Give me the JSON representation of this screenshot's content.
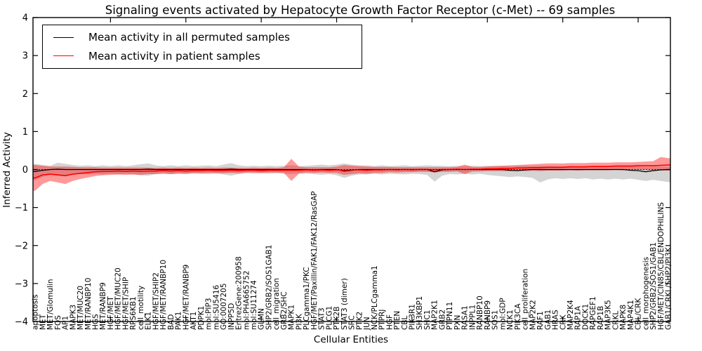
{
  "chart_data": {
    "type": "line",
    "title": "Signaling events activated by Hepatocyte Growth Factor Receptor (c-Met) -- 69 samples",
    "xlabel": "Cellular Entities",
    "ylabel": "Inferred Activity",
    "ylim": [
      -4,
      4
    ],
    "ytick_values": [
      4,
      3,
      2,
      1,
      0,
      -1,
      -2,
      -3,
      -4
    ],
    "ytick_labels": [
      "4",
      "3",
      "2",
      "1",
      "0",
      "−1",
      "−2",
      "−3",
      "−4"
    ],
    "grid": false,
    "legend_position": "upper left",
    "zero_reference_line": true,
    "colors": {
      "permuted_line": "#000000",
      "permuted_band": "#999999",
      "patient_line": "#ff0000",
      "patient_band": "#ff0000"
    },
    "categories": [
      "apoptosis",
      "MET",
      "MET/Glomulin",
      "FOS",
      "AP1",
      "MAPK3",
      "MET/MUC20",
      "MET/RANBP10",
      "HGS",
      "MET/RANBP9",
      "HGF/MET",
      "HGF/MET/MUC20",
      "HGF/MET/SHIP",
      "RPS6KB1",
      "cell_motility",
      "ELK1",
      "HGF/MET/SHIP2",
      "HGF/MET/RANBP10",
      "BAD",
      "PAK1",
      "HGF/MET/RANBP9",
      "AKT1",
      "PDPK1",
      "mol:PIP3",
      "mol:SU5416",
      "GO:0007205",
      "INPP5D",
      "EntrezGene:200958",
      "mol:PHA665752",
      "mol:SU11274",
      "GLMN",
      "SHP2/GRB2/SOS1GAB1",
      "cell_migration",
      "GRB2/SHC",
      "MAPK1",
      "PI3K",
      "PLCgamma1/PKC",
      "HGF/MET/Paxillin/FAK1/FAK12/RasGAP",
      "STAT3",
      "PLCG1",
      "PTK2B",
      "STAT3 (dimer)",
      "SRC",
      "PTK2",
      "JUN",
      "NCK/PLCgamma1",
      "PTPRJ",
      "HGF",
      "PTEN",
      "CBL",
      "PIK3R1",
      "SH3KBP1",
      "SHC1",
      "MAP2K1",
      "GRB2",
      "PTPN11",
      "PXN",
      "RASA1",
      "INPPL1",
      "RANBP10",
      "RANBP9",
      "SOS1",
      "mol:GDP",
      "NCK1",
      "PIK3CA",
      "cell_proliferation",
      "MAP2K2",
      "RAF1",
      "GAB1",
      "HRAS",
      "CRK",
      "MAP2K4",
      "RAP1A",
      "DOCK1",
      "RAPGEF1",
      "RAP1B",
      "MAP3K5",
      "CRKL",
      "MAPK8",
      "MAP4K1",
      "CBL/CRK",
      "cell_morphogenesis",
      "SHP2/GRB2/SOS1/GAB1",
      "HGF/MET/CIN85/CBL/ENDOPHILINS",
      "GAB1/CRKL/SHP2/PI3K"
    ],
    "series": [
      {
        "name": "Mean activity in all permuted samples",
        "color": "#000000",
        "mean": [
          -0.05,
          -0.02,
          0.0,
          0.01,
          0.0,
          0.0,
          0.0,
          0.0,
          0.0,
          0.0,
          0.0,
          0.0,
          0.0,
          0.0,
          0.0,
          0.01,
          0.0,
          0.0,
          0.0,
          0.0,
          0.0,
          0.0,
          0.0,
          0.0,
          0.0,
          0.0,
          0.01,
          0.0,
          0.0,
          0.0,
          0.0,
          0.0,
          0.0,
          0.0,
          0.0,
          0.0,
          0.0,
          -0.01,
          0.0,
          0.0,
          0.0,
          -0.04,
          -0.02,
          0.0,
          0.0,
          0.0,
          0.0,
          0.0,
          0.0,
          0.0,
          0.0,
          0.0,
          0.0,
          -0.06,
          -0.01,
          0.0,
          0.0,
          0.0,
          0.0,
          0.0,
          0.0,
          0.0,
          0.0,
          -0.02,
          -0.03,
          -0.01,
          0.0,
          0.0,
          0.0,
          0.0,
          0.0,
          0.0,
          0.0,
          0.0,
          0.0,
          0.0,
          0.0,
          0.0,
          0.0,
          -0.02,
          -0.03,
          -0.06,
          -0.03,
          -0.01,
          0.0
        ],
        "band_upper": [
          0.15,
          0.12,
          0.1,
          0.18,
          0.15,
          0.12,
          0.1,
          0.11,
          0.09,
          0.11,
          0.09,
          0.11,
          0.09,
          0.11,
          0.14,
          0.16,
          0.11,
          0.09,
          0.11,
          0.09,
          0.11,
          0.09,
          0.1,
          0.11,
          0.09,
          0.13,
          0.17,
          0.11,
          0.09,
          0.1,
          0.09,
          0.1,
          0.09,
          0.1,
          0.11,
          0.09,
          0.1,
          0.11,
          0.13,
          0.11,
          0.13,
          0.16,
          0.13,
          0.11,
          0.11,
          0.09,
          0.11,
          0.09,
          0.1,
          0.11,
          0.09,
          0.1,
          0.11,
          0.1,
          0.1,
          0.09,
          0.1,
          0.09,
          0.1,
          0.09,
          0.1,
          0.1,
          0.1,
          0.09,
          0.09,
          0.1,
          0.09,
          0.1,
          0.09,
          0.09,
          0.08,
          0.09,
          0.08,
          0.09,
          0.08,
          0.08,
          0.09,
          0.08,
          0.08,
          0.08,
          0.08,
          0.07,
          0.08,
          0.08,
          0.08
        ],
        "band_lower": [
          -0.28,
          -0.2,
          -0.14,
          -0.16,
          -0.18,
          -0.14,
          -0.12,
          -0.13,
          -0.11,
          -0.13,
          -0.11,
          -0.13,
          -0.11,
          -0.13,
          -0.15,
          -0.16,
          -0.12,
          -0.1,
          -0.12,
          -0.1,
          -0.12,
          -0.1,
          -0.11,
          -0.12,
          -0.1,
          -0.13,
          -0.16,
          -0.12,
          -0.1,
          -0.11,
          -0.1,
          -0.11,
          -0.1,
          -0.11,
          -0.12,
          -0.1,
          -0.11,
          -0.12,
          -0.14,
          -0.12,
          -0.15,
          -0.22,
          -0.16,
          -0.13,
          -0.13,
          -0.11,
          -0.13,
          -0.11,
          -0.12,
          -0.13,
          -0.11,
          -0.12,
          -0.14,
          -0.32,
          -0.16,
          -0.12,
          -0.13,
          -0.11,
          -0.13,
          -0.11,
          -0.14,
          -0.16,
          -0.18,
          -0.2,
          -0.18,
          -0.2,
          -0.22,
          -0.34,
          -0.26,
          -0.23,
          -0.25,
          -0.23,
          -0.25,
          -0.23,
          -0.26,
          -0.24,
          -0.26,
          -0.24,
          -0.26,
          -0.24,
          -0.27,
          -0.3,
          -0.27,
          -0.3,
          -0.33
        ]
      },
      {
        "name": "Mean activity in patient samples",
        "color": "#ff0000",
        "mean": [
          -0.22,
          -0.14,
          -0.12,
          -0.14,
          -0.16,
          -0.12,
          -0.1,
          -0.08,
          -0.06,
          -0.05,
          -0.05,
          -0.04,
          -0.05,
          -0.04,
          -0.05,
          -0.04,
          -0.04,
          -0.03,
          -0.04,
          -0.03,
          -0.04,
          -0.03,
          -0.03,
          -0.02,
          -0.03,
          -0.03,
          -0.02,
          -0.03,
          -0.02,
          -0.02,
          -0.03,
          -0.02,
          -0.02,
          -0.02,
          -0.02,
          -0.02,
          -0.01,
          -0.02,
          -0.01,
          -0.02,
          -0.01,
          -0.02,
          -0.01,
          -0.01,
          -0.02,
          -0.01,
          -0.01,
          0.0,
          -0.01,
          0.0,
          -0.01,
          0.0,
          0.0,
          -0.01,
          0.0,
          0.0,
          0.01,
          0.0,
          0.01,
          0.01,
          0.02,
          0.02,
          0.03,
          0.03,
          0.04,
          0.04,
          0.05,
          0.05,
          0.06,
          0.06,
          0.06,
          0.07,
          0.07,
          0.07,
          0.08,
          0.08,
          0.08,
          0.09,
          0.09,
          0.09,
          0.1,
          0.1,
          0.1,
          0.11,
          0.12
        ],
        "band_upper": [
          0.12,
          0.1,
          0.08,
          0.08,
          0.08,
          0.07,
          0.06,
          0.06,
          0.06,
          0.05,
          0.05,
          0.05,
          0.05,
          0.05,
          0.05,
          0.05,
          0.04,
          0.05,
          0.04,
          0.05,
          0.04,
          0.05,
          0.04,
          0.05,
          0.04,
          0.05,
          0.05,
          0.04,
          0.04,
          0.05,
          0.04,
          0.05,
          0.04,
          0.06,
          0.28,
          0.08,
          0.06,
          0.06,
          0.06,
          0.06,
          0.08,
          0.12,
          0.1,
          0.09,
          0.08,
          0.07,
          0.07,
          0.07,
          0.06,
          0.06,
          0.06,
          0.06,
          0.06,
          0.06,
          0.06,
          0.06,
          0.07,
          0.13,
          0.07,
          0.07,
          0.08,
          0.09,
          0.1,
          0.11,
          0.12,
          0.13,
          0.14,
          0.15,
          0.16,
          0.16,
          0.16,
          0.17,
          0.17,
          0.17,
          0.18,
          0.18,
          0.18,
          0.19,
          0.19,
          0.19,
          0.2,
          0.21,
          0.22,
          0.33,
          0.3
        ],
        "band_lower": [
          -0.56,
          -0.38,
          -0.3,
          -0.34,
          -0.38,
          -0.3,
          -0.25,
          -0.21,
          -0.17,
          -0.15,
          -0.14,
          -0.13,
          -0.14,
          -0.13,
          -0.14,
          -0.12,
          -0.12,
          -0.11,
          -0.12,
          -0.11,
          -0.11,
          -0.1,
          -0.1,
          -0.09,
          -0.1,
          -0.1,
          -0.09,
          -0.1,
          -0.08,
          -0.08,
          -0.09,
          -0.08,
          -0.08,
          -0.09,
          -0.3,
          -0.11,
          -0.08,
          -0.09,
          -0.08,
          -0.09,
          -0.09,
          -0.14,
          -0.12,
          -0.1,
          -0.11,
          -0.09,
          -0.09,
          -0.07,
          -0.08,
          -0.07,
          -0.07,
          -0.06,
          -0.06,
          -0.08,
          -0.06,
          -0.06,
          -0.05,
          -0.12,
          -0.05,
          -0.05,
          -0.04,
          -0.04,
          -0.04,
          -0.04,
          -0.03,
          -0.04,
          -0.03,
          -0.04,
          -0.03,
          -0.03,
          -0.03,
          -0.02,
          -0.03,
          -0.02,
          -0.02,
          -0.02,
          -0.02,
          -0.01,
          -0.02,
          -0.01,
          -0.01,
          -0.01,
          -0.02,
          -0.02,
          -0.03
        ]
      }
    ]
  }
}
